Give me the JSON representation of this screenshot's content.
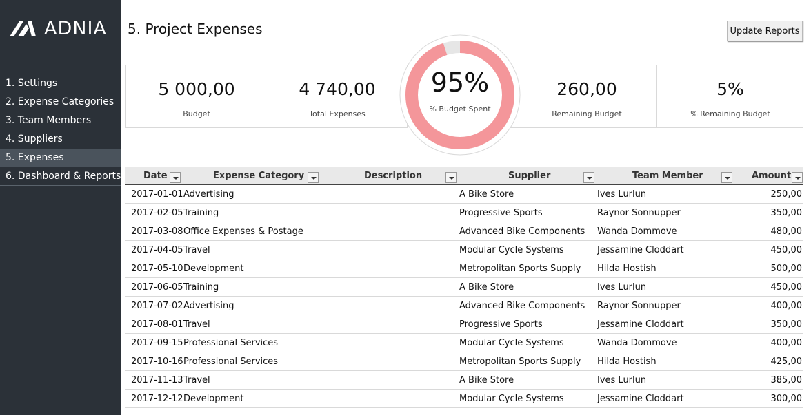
{
  "brand": {
    "name": "ADNIA"
  },
  "sidebar": {
    "items": [
      {
        "label": "1. Settings"
      },
      {
        "label": "2. Expense Categories"
      },
      {
        "label": "3. Team Members"
      },
      {
        "label": "4. Suppliers"
      },
      {
        "label": "5. Expenses"
      },
      {
        "label": "6. Dashboard & Reports"
      }
    ]
  },
  "header": {
    "title": "5. Project Expenses",
    "update_button": "Update Reports"
  },
  "kpis": {
    "budget": {
      "value": "5 000,00",
      "label": "Budget"
    },
    "total_expenses": {
      "value": "4 740,00",
      "label": "Total Expenses"
    },
    "budget_spent": {
      "value": "95%",
      "label": "% Budget Spent",
      "fraction": 0.95
    },
    "remaining_budget": {
      "value": "260,00",
      "label": "Remaining Budget"
    },
    "remaining_pct": {
      "value": "5%",
      "label": "% Remaining Budget"
    }
  },
  "colors": {
    "sidebar": "#2b3138",
    "donut": "#f4969a",
    "donut_rest": "#e6e6e6"
  },
  "table": {
    "columns": [
      "Date",
      "Expense Category",
      "Description",
      "Supplier",
      "Team Member",
      "Amount"
    ],
    "rows": [
      {
        "date": "2017-01-01",
        "category": "Advertising",
        "description": "",
        "supplier": "A Bike Store",
        "member": "Ives Lurlun",
        "amount": "250,00"
      },
      {
        "date": "2017-02-05",
        "category": "Training",
        "description": "",
        "supplier": "Progressive Sports",
        "member": "Raynor Sonnupper",
        "amount": "350,00"
      },
      {
        "date": "2017-03-08",
        "category": "Office Expenses & Postage",
        "description": "",
        "supplier": "Advanced Bike Components",
        "member": "Wanda Dommove",
        "amount": "480,00"
      },
      {
        "date": "2017-04-05",
        "category": "Travel",
        "description": "",
        "supplier": "Modular Cycle Systems",
        "member": "Jessamine Cloddart",
        "amount": "450,00"
      },
      {
        "date": "2017-05-10",
        "category": "Development",
        "description": "",
        "supplier": "Metropolitan Sports Supply",
        "member": "Hilda Hostish",
        "amount": "500,00"
      },
      {
        "date": "2017-06-05",
        "category": "Training",
        "description": "",
        "supplier": "A Bike Store",
        "member": "Ives Lurlun",
        "amount": "450,00"
      },
      {
        "date": "2017-07-02",
        "category": "Advertising",
        "description": "",
        "supplier": "Advanced Bike Components",
        "member": "Raynor Sonnupper",
        "amount": "400,00"
      },
      {
        "date": "2017-08-01",
        "category": "Travel",
        "description": "",
        "supplier": "Progressive Sports",
        "member": "Jessamine Cloddart",
        "amount": "350,00"
      },
      {
        "date": "2017-09-15",
        "category": "Professional Services",
        "description": "",
        "supplier": "Modular Cycle Systems",
        "member": "Wanda Dommove",
        "amount": "400,00"
      },
      {
        "date": "2017-10-16",
        "category": "Professional Services",
        "description": "",
        "supplier": "Metropolitan Sports Supply",
        "member": "Hilda Hostish",
        "amount": "425,00"
      },
      {
        "date": "2017-11-13",
        "category": "Travel",
        "description": "",
        "supplier": "A Bike Store",
        "member": "Ives Lurlun",
        "amount": "385,00"
      },
      {
        "date": "2017-12-12",
        "category": "Development",
        "description": "",
        "supplier": "Modular Cycle Systems",
        "member": "Jessamine Cloddart",
        "amount": "300,00"
      }
    ]
  }
}
